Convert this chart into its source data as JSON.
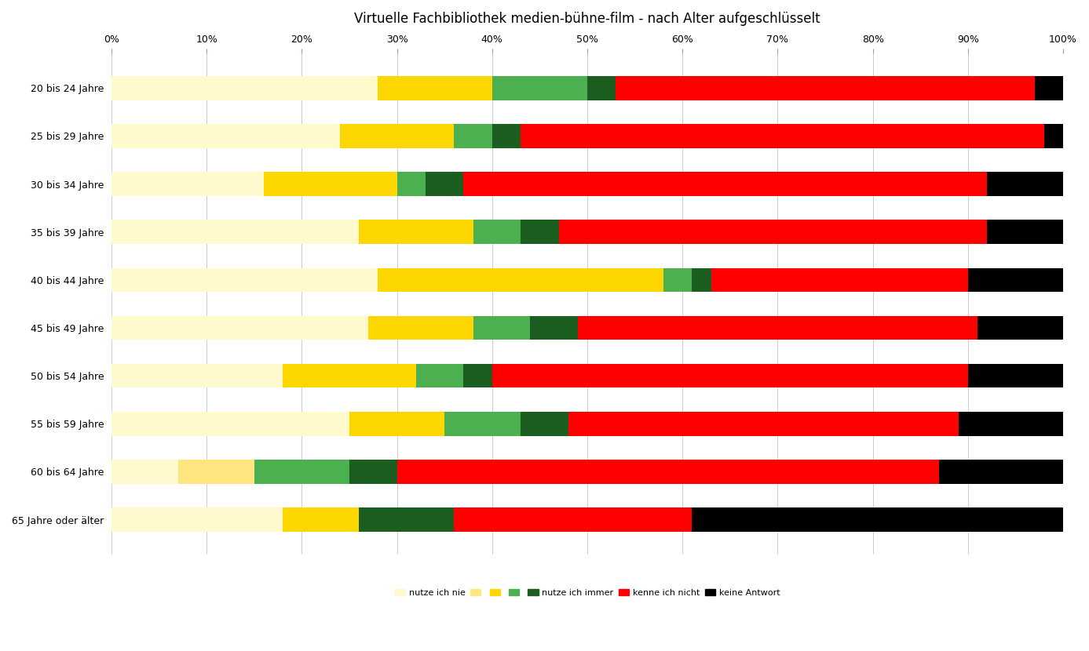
{
  "title": "Virtuelle Fachbibliothek medien-bühne-film - nach Alter aufgeschlüsselt",
  "categories": [
    "20 bis 24 Jahre",
    "25 bis 29 Jahre",
    "30 bis 34 Jahre",
    "35 bis 39 Jahre",
    "40 bis 44 Jahre",
    "45 bis 49 Jahre",
    "50 bis 54 Jahre",
    "55 bis 59 Jahre",
    "60 bis 64 Jahre",
    "65 Jahre oder älter"
  ],
  "segments": [
    {
      "label": "nutze ich nie",
      "color": "#FFFACD",
      "values": [
        28,
        24,
        16,
        26,
        28,
        27,
        18,
        25,
        7,
        18
      ]
    },
    {
      "label": "",
      "color": "#FFE680",
      "values": [
        0,
        0,
        0,
        0,
        0,
        0,
        0,
        0,
        8,
        0
      ]
    },
    {
      "label": "",
      "color": "#FFD700",
      "values": [
        12,
        12,
        14,
        12,
        30,
        11,
        14,
        10,
        0,
        8
      ]
    },
    {
      "label": "",
      "color": "#4CAF50",
      "values": [
        10,
        4,
        3,
        5,
        3,
        6,
        5,
        8,
        10,
        0
      ]
    },
    {
      "label": "",
      "color": "#2E7D32",
      "values": [
        0,
        0,
        0,
        0,
        0,
        0,
        0,
        0,
        0,
        0
      ]
    },
    {
      "label": "nutze ich immer",
      "color": "#1B5E20",
      "values": [
        3,
        3,
        4,
        4,
        2,
        5,
        3,
        5,
        5,
        10
      ]
    },
    {
      "label": "kenne ich nicht",
      "color": "#FF0000",
      "values": [
        44,
        55,
        55,
        45,
        27,
        42,
        50,
        41,
        57,
        25
      ]
    },
    {
      "label": "keine Antwort",
      "color": "#000000",
      "values": [
        3,
        2,
        8,
        8,
        10,
        9,
        10,
        11,
        13,
        39
      ]
    }
  ],
  "legend_entries": [
    {
      "color": "#FFFACD",
      "label": "nutze ich nie"
    },
    {
      "color": "#FFE680",
      "label": ""
    },
    {
      "color": "#FFD700",
      "label": ""
    },
    {
      "color": "#4CAF50",
      "label": ""
    },
    {
      "color": "#1B5E20",
      "label": "nutze ich immer"
    },
    {
      "color": "#FF0000",
      "label": "kenne ich nicht"
    },
    {
      "color": "#000000",
      "label": "keine Antwort"
    }
  ],
  "background_color": "#FFFFFF",
  "title_color": "#000000",
  "title_fontsize": 12,
  "tick_fontsize": 9,
  "label_fontsize": 9,
  "bar_height": 0.5
}
